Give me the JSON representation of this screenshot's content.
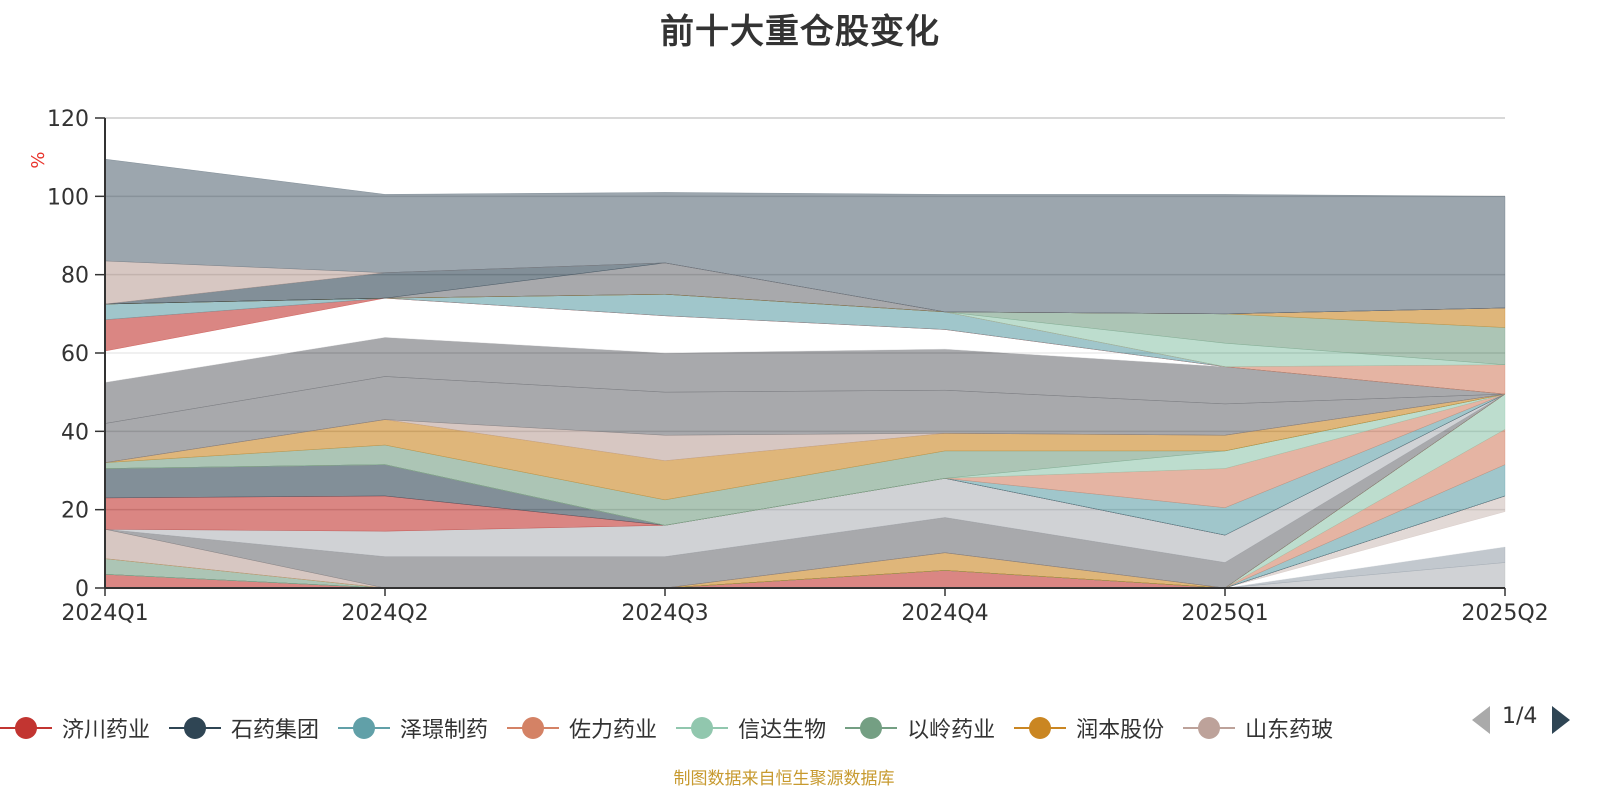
{
  "title": "前十大重仓股变化",
  "source_note": "制图数据来自恒生聚源数据库",
  "legend_page": "1/4",
  "chart_data": {
    "type": "area",
    "stacked": true,
    "ylabel": "%",
    "ylim": [
      0,
      120
    ],
    "yticks": [
      0,
      20,
      40,
      60,
      80,
      100,
      120
    ],
    "categories": [
      "2024Q1",
      "2024Q2",
      "2024Q3",
      "2024Q4",
      "2025Q1",
      "2025Q2"
    ],
    "grid": true,
    "legend_position": "bottom",
    "series": [
      {
        "color": "#b1b4b9",
        "values": [
          0,
          0,
          0,
          0,
          0,
          6.5
        ]
      },
      {
        "color": "#9aa3ad",
        "values": [
          0,
          0,
          0,
          0,
          0,
          4
        ]
      },
      {
        "color": "#ffffff",
        "values": [
          0,
          0,
          0,
          0,
          0,
          9
        ]
      },
      {
        "color": "#cfc0ba",
        "values": [
          0,
          0,
          0,
          0,
          0,
          4
        ]
      },
      {
        "name": "济川药业",
        "color": "#c23531",
        "values": [
          3.5,
          0,
          0,
          4.5,
          0,
          0
        ]
      },
      {
        "name": "石药集团",
        "color": "#2f4554",
        "values": [
          0,
          0,
          0,
          0,
          0,
          0
        ]
      },
      {
        "name": "泽璟制药",
        "color": "#61a0a8",
        "values": [
          0,
          0,
          0,
          0,
          0,
          8
        ]
      },
      {
        "name": "佐力药业",
        "color": "#d48265",
        "values": [
          0,
          0,
          0,
          0,
          0,
          9
        ]
      },
      {
        "name": "信达生物",
        "color": "#91c7ae",
        "values": [
          0,
          0,
          0,
          0,
          0,
          9
        ]
      },
      {
        "name": "以岭药业",
        "color": "#749f83",
        "values": [
          4,
          0,
          0,
          0,
          0,
          0
        ]
      },
      {
        "name": "润本股份",
        "color": "#ca8622",
        "values": [
          0,
          0,
          0,
          4.5,
          0,
          0
        ]
      },
      {
        "name": "山东药玻",
        "color": "#bda29a",
        "values": [
          7.5,
          0,
          0,
          0,
          0,
          0
        ]
      },
      {
        "color": "#6e7074",
        "values": [
          0,
          8,
          8,
          9,
          6.5,
          0
        ]
      },
      {
        "color": "#b1b4b9",
        "values": [
          0,
          6.5,
          8,
          10,
          7,
          0
        ]
      },
      {
        "color": "#c23531",
        "values": [
          8,
          9,
          0,
          0,
          0,
          0
        ]
      },
      {
        "color": "#2f4554",
        "values": [
          7.5,
          8,
          0,
          0,
          0,
          0
        ]
      },
      {
        "color": "#61a0a8",
        "values": [
          0,
          0,
          0,
          0,
          7,
          0
        ]
      },
      {
        "color": "#d48265",
        "values": [
          0,
          0,
          0,
          0,
          10,
          0
        ]
      },
      {
        "color": "#91c7ae",
        "values": [
          0,
          0,
          0,
          0,
          4.5,
          0
        ]
      },
      {
        "color": "#749f83",
        "values": [
          1.5,
          5,
          6.5,
          7,
          0,
          0
        ]
      },
      {
        "color": "#ca8622",
        "values": [
          0,
          6.5,
          10,
          4.5,
          4,
          0
        ]
      },
      {
        "color": "#bda29a",
        "values": [
          0,
          0,
          6.5,
          0,
          0,
          0
        ]
      },
      {
        "color": "#6e7074",
        "values": [
          10,
          11,
          11,
          11,
          8,
          0
        ]
      },
      {
        "color": "#6e7074",
        "values": [
          10.5,
          10,
          10,
          10.5,
          9.5,
          0
        ]
      },
      {
        "color": "#ffffff",
        "values": [
          8,
          10,
          9.5,
          5,
          0,
          0
        ]
      },
      {
        "color": "#c23531",
        "values": [
          8,
          0,
          0,
          0,
          0,
          0
        ]
      },
      {
        "color": "#61a0a8",
        "values": [
          4,
          0,
          5.5,
          4.5,
          0,
          0
        ]
      },
      {
        "color": "#d48265",
        "values": [
          0,
          0,
          0,
          0,
          0,
          7.5
        ]
      },
      {
        "color": "#91c7ae",
        "values": [
          0,
          0,
          0,
          0,
          6,
          0
        ]
      },
      {
        "color": "#749f83",
        "values": [
          0,
          0,
          0,
          0,
          7.5,
          9.5
        ]
      },
      {
        "color": "#ca8622",
        "values": [
          0,
          0,
          0,
          0,
          0,
          5
        ]
      },
      {
        "color": "#6e7074",
        "values": [
          0,
          0,
          8,
          0,
          0,
          0
        ]
      },
      {
        "color": "#2f4554",
        "values": [
          0,
          6.5,
          0,
          0,
          0,
          0
        ]
      },
      {
        "color": "#bda29a",
        "values": [
          11,
          0,
          0,
          0,
          0,
          0
        ]
      },
      {
        "color": "#5a6b78",
        "values": [
          26,
          20,
          18,
          30,
          30.5,
          28.5
        ]
      }
    ]
  }
}
